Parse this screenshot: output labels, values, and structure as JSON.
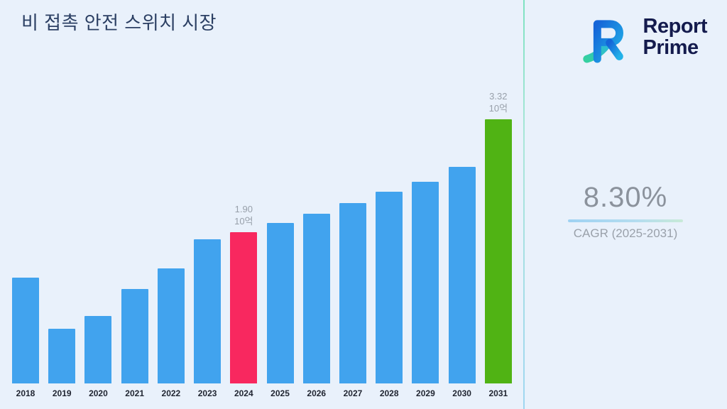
{
  "title": "비 접촉 안전 스위치 시장",
  "logo": {
    "line1": "Report",
    "line2": "Prime"
  },
  "right_panel": {
    "cagr_value": "8.30%",
    "cagr_label": "CAGR (2025-2031)"
  },
  "colors": {
    "background": "#e9f1fb",
    "title_text": "#2b3f63",
    "bar_default": "#41a3ee",
    "bar_highlight_2024": "#f8285f",
    "bar_highlight_2031": "#50b314",
    "annotation_text": "#98a0aa",
    "cagr_text": "#8b929c",
    "logo_text": "#141b4d"
  },
  "chart_data": {
    "type": "bar",
    "title": "비 접촉 안전 스위치 시장",
    "xlabel": "",
    "ylabel": "",
    "unit": "10억",
    "grid": false,
    "legend": false,
    "ylim": [
      0,
      3.6
    ],
    "categories": [
      "2018",
      "2019",
      "2020",
      "2021",
      "2022",
      "2023",
      "2024",
      "2025",
      "2026",
      "2027",
      "2028",
      "2029",
      "2030",
      "2031"
    ],
    "values": [
      1.33,
      0.69,
      0.85,
      1.19,
      1.45,
      1.81,
      1.9,
      2.02,
      2.13,
      2.27,
      2.41,
      2.54,
      2.72,
      3.32
    ],
    "bar_colors": {
      "default": "#41a3ee",
      "2024": "#f8285f",
      "2031": "#50b314"
    },
    "annotations": [
      {
        "category": "2024",
        "lines": [
          "1.90",
          "10억"
        ]
      },
      {
        "category": "2031",
        "lines": [
          "3.32",
          "10억"
        ]
      }
    ]
  }
}
